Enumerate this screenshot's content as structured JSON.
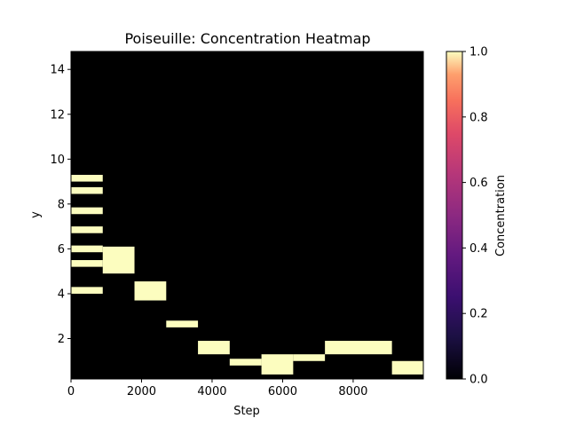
{
  "chart_data": {
    "type": "heatmap",
    "title": "Poiseuille: Concentration Heatmap",
    "xlabel": "Step",
    "ylabel": "y",
    "xlim": [
      0,
      9990
    ],
    "ylim": [
      0.2,
      14.8
    ],
    "x_ticks": [
      0,
      2000,
      4000,
      6000,
      8000
    ],
    "y_ticks": [
      2,
      4,
      6,
      8,
      10,
      12,
      14
    ],
    "background_value": 0.0,
    "cells": [
      {
        "x0": 0,
        "x1": 900,
        "y0": 9.0,
        "y1": 9.3,
        "value": 1.0
      },
      {
        "x0": 0,
        "x1": 900,
        "y0": 8.45,
        "y1": 8.75,
        "value": 1.0
      },
      {
        "x0": 0,
        "x1": 900,
        "y0": 7.55,
        "y1": 7.85,
        "value": 1.0
      },
      {
        "x0": 0,
        "x1": 900,
        "y0": 6.7,
        "y1": 7.0,
        "value": 1.0
      },
      {
        "x0": 0,
        "x1": 900,
        "y0": 5.85,
        "y1": 6.15,
        "value": 1.0
      },
      {
        "x0": 0,
        "x1": 900,
        "y0": 5.2,
        "y1": 5.5,
        "value": 1.0
      },
      {
        "x0": 0,
        "x1": 900,
        "y0": 4.0,
        "y1": 4.3,
        "value": 1.0
      },
      {
        "x0": 900,
        "x1": 1800,
        "y0": 4.9,
        "y1": 6.1,
        "value": 1.0
      },
      {
        "x0": 1800,
        "x1": 2700,
        "y0": 3.7,
        "y1": 4.55,
        "value": 1.0
      },
      {
        "x0": 2700,
        "x1": 3600,
        "y0": 2.5,
        "y1": 2.8,
        "value": 1.0
      },
      {
        "x0": 3600,
        "x1": 4500,
        "y0": 1.3,
        "y1": 1.9,
        "value": 1.0
      },
      {
        "x0": 4500,
        "x1": 5400,
        "y0": 0.8,
        "y1": 1.1,
        "value": 1.0
      },
      {
        "x0": 5400,
        "x1": 6300,
        "y0": 0.4,
        "y1": 1.3,
        "value": 1.0
      },
      {
        "x0": 6300,
        "x1": 7200,
        "y0": 1.0,
        "y1": 1.3,
        "value": 1.0
      },
      {
        "x0": 7200,
        "x1": 9100,
        "y0": 1.3,
        "y1": 1.9,
        "value": 1.0
      },
      {
        "x0": 9100,
        "x1": 9990,
        "y0": 0.4,
        "y1": 1.0,
        "value": 1.0
      }
    ],
    "colorbar": {
      "label": "Concentration",
      "colormap": "magma",
      "range": [
        0.0,
        1.0
      ],
      "ticks": [
        "0.0",
        "0.2",
        "0.4",
        "0.6",
        "0.8",
        "1.0"
      ]
    }
  }
}
